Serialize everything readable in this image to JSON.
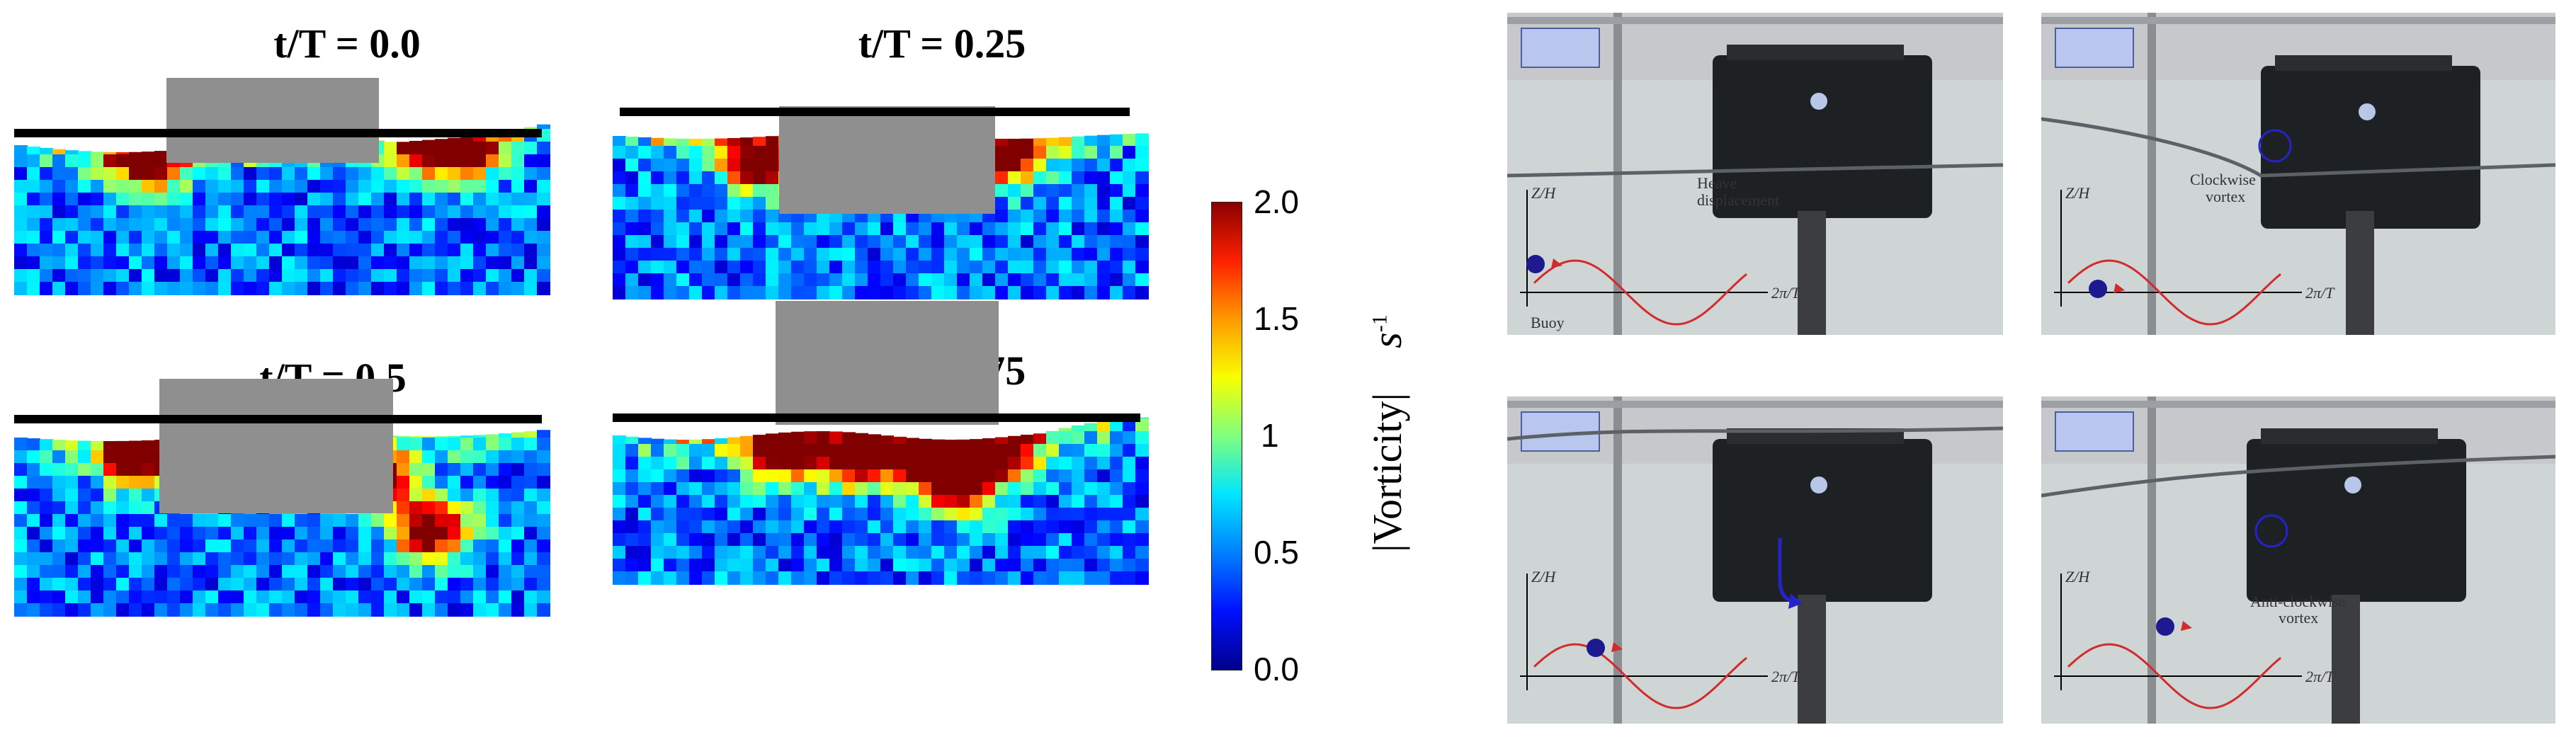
{
  "simulation": {
    "panels": [
      {
        "title": "t/T = 0.0"
      },
      {
        "title": "t/T = 0.25"
      },
      {
        "title": "t/T = 0.5"
      },
      {
        "title": "t/T = 0.75"
      }
    ],
    "colorbar": {
      "title_bars": "|Vorticity|",
      "unit": "s",
      "unit_exp": "-1",
      "ticks": [
        "2.0",
        "1.5",
        "1",
        "0.5",
        "0.0"
      ],
      "colors": [
        "#8b0000",
        "#ff2000",
        "#ff9a00",
        "#f7ff00",
        "#7fff7f",
        "#00e5ff",
        "#0080ff",
        "#0010ff",
        "#00008b"
      ]
    }
  },
  "experiment": {
    "axis_y_label": "Z/H",
    "axis_x_label": "2π/T",
    "annotations": {
      "heave": "Heave",
      "displacement": "displacement",
      "buoy": "Buoy",
      "clockwise": "Clockwise",
      "anticlockwise": "Anti-clockwise",
      "vortex": "vortex"
    },
    "colors": {
      "wave": "#d22b2b",
      "marker": "#1d1a8f",
      "arrow": "#2323c8"
    }
  }
}
